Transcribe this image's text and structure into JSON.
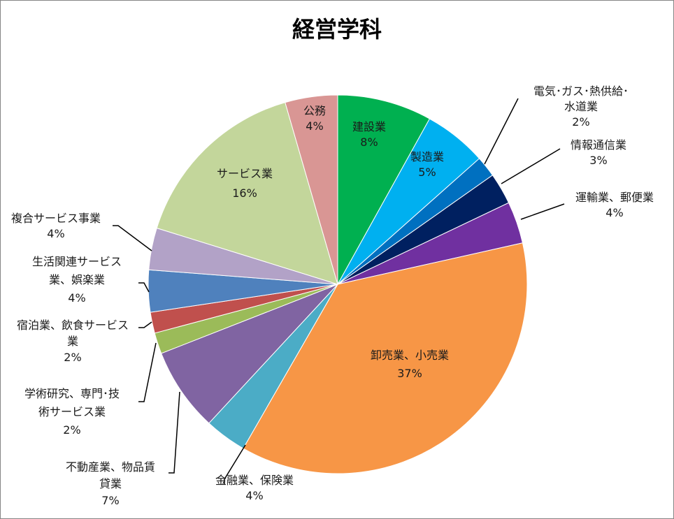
{
  "chart_data": {
    "type": "pie",
    "title": "経営学科",
    "start": "top",
    "direction": "clockwise",
    "slices": [
      {
        "label": [
          "建設業"
        ],
        "pct": "8%",
        "value": 8.1,
        "color": "#00b050"
      },
      {
        "label": [
          "製造業"
        ],
        "pct": "5%",
        "value": 5.4,
        "color": "#00b0f0"
      },
      {
        "label": [
          "電気･ガス･熱供給･",
          "水道業"
        ],
        "pct": "2%",
        "value": 1.8,
        "color": "#0070c0"
      },
      {
        "label": [
          "情報通信業"
        ],
        "pct": "3%",
        "value": 2.7,
        "color": "#002060"
      },
      {
        "label": [
          "運輸業、郵便業"
        ],
        "pct": "4%",
        "value": 3.6,
        "color": "#7030a0"
      },
      {
        "label": [
          "卸売業、小売業"
        ],
        "pct": "37%",
        "value": 37.0,
        "color": "#f79646"
      },
      {
        "label": [
          "金融業、保険業"
        ],
        "pct": "4%",
        "value": 3.6,
        "color": "#4bacc6"
      },
      {
        "label": [
          "不動産業、物品賃",
          "貸業"
        ],
        "pct": "7%",
        "value": 7.2,
        "color": "#8064a2"
      },
      {
        "label": [
          "学術研究、専門･技",
          "術サービス業"
        ],
        "pct": "2%",
        "value": 1.8,
        "color": "#9bbb59"
      },
      {
        "label": [
          "宿泊業、飲食サービス",
          "業"
        ],
        "pct": "2%",
        "value": 1.8,
        "color": "#c0504d"
      },
      {
        "label": [
          "生活関連サービス",
          "業、娯楽業"
        ],
        "pct": "4%",
        "value": 3.6,
        "color": "#4f81bd"
      },
      {
        "label": [
          "複合サービス事業"
        ],
        "pct": "4%",
        "value": 3.6,
        "color": "#b2a2c7"
      },
      {
        "label": [
          "サービス業"
        ],
        "pct": "16%",
        "value": 15.8,
        "color": "#c3d69b"
      },
      {
        "label": [
          "公務"
        ],
        "pct": "4%",
        "value": 4.5,
        "color": "#d99694"
      }
    ]
  }
}
